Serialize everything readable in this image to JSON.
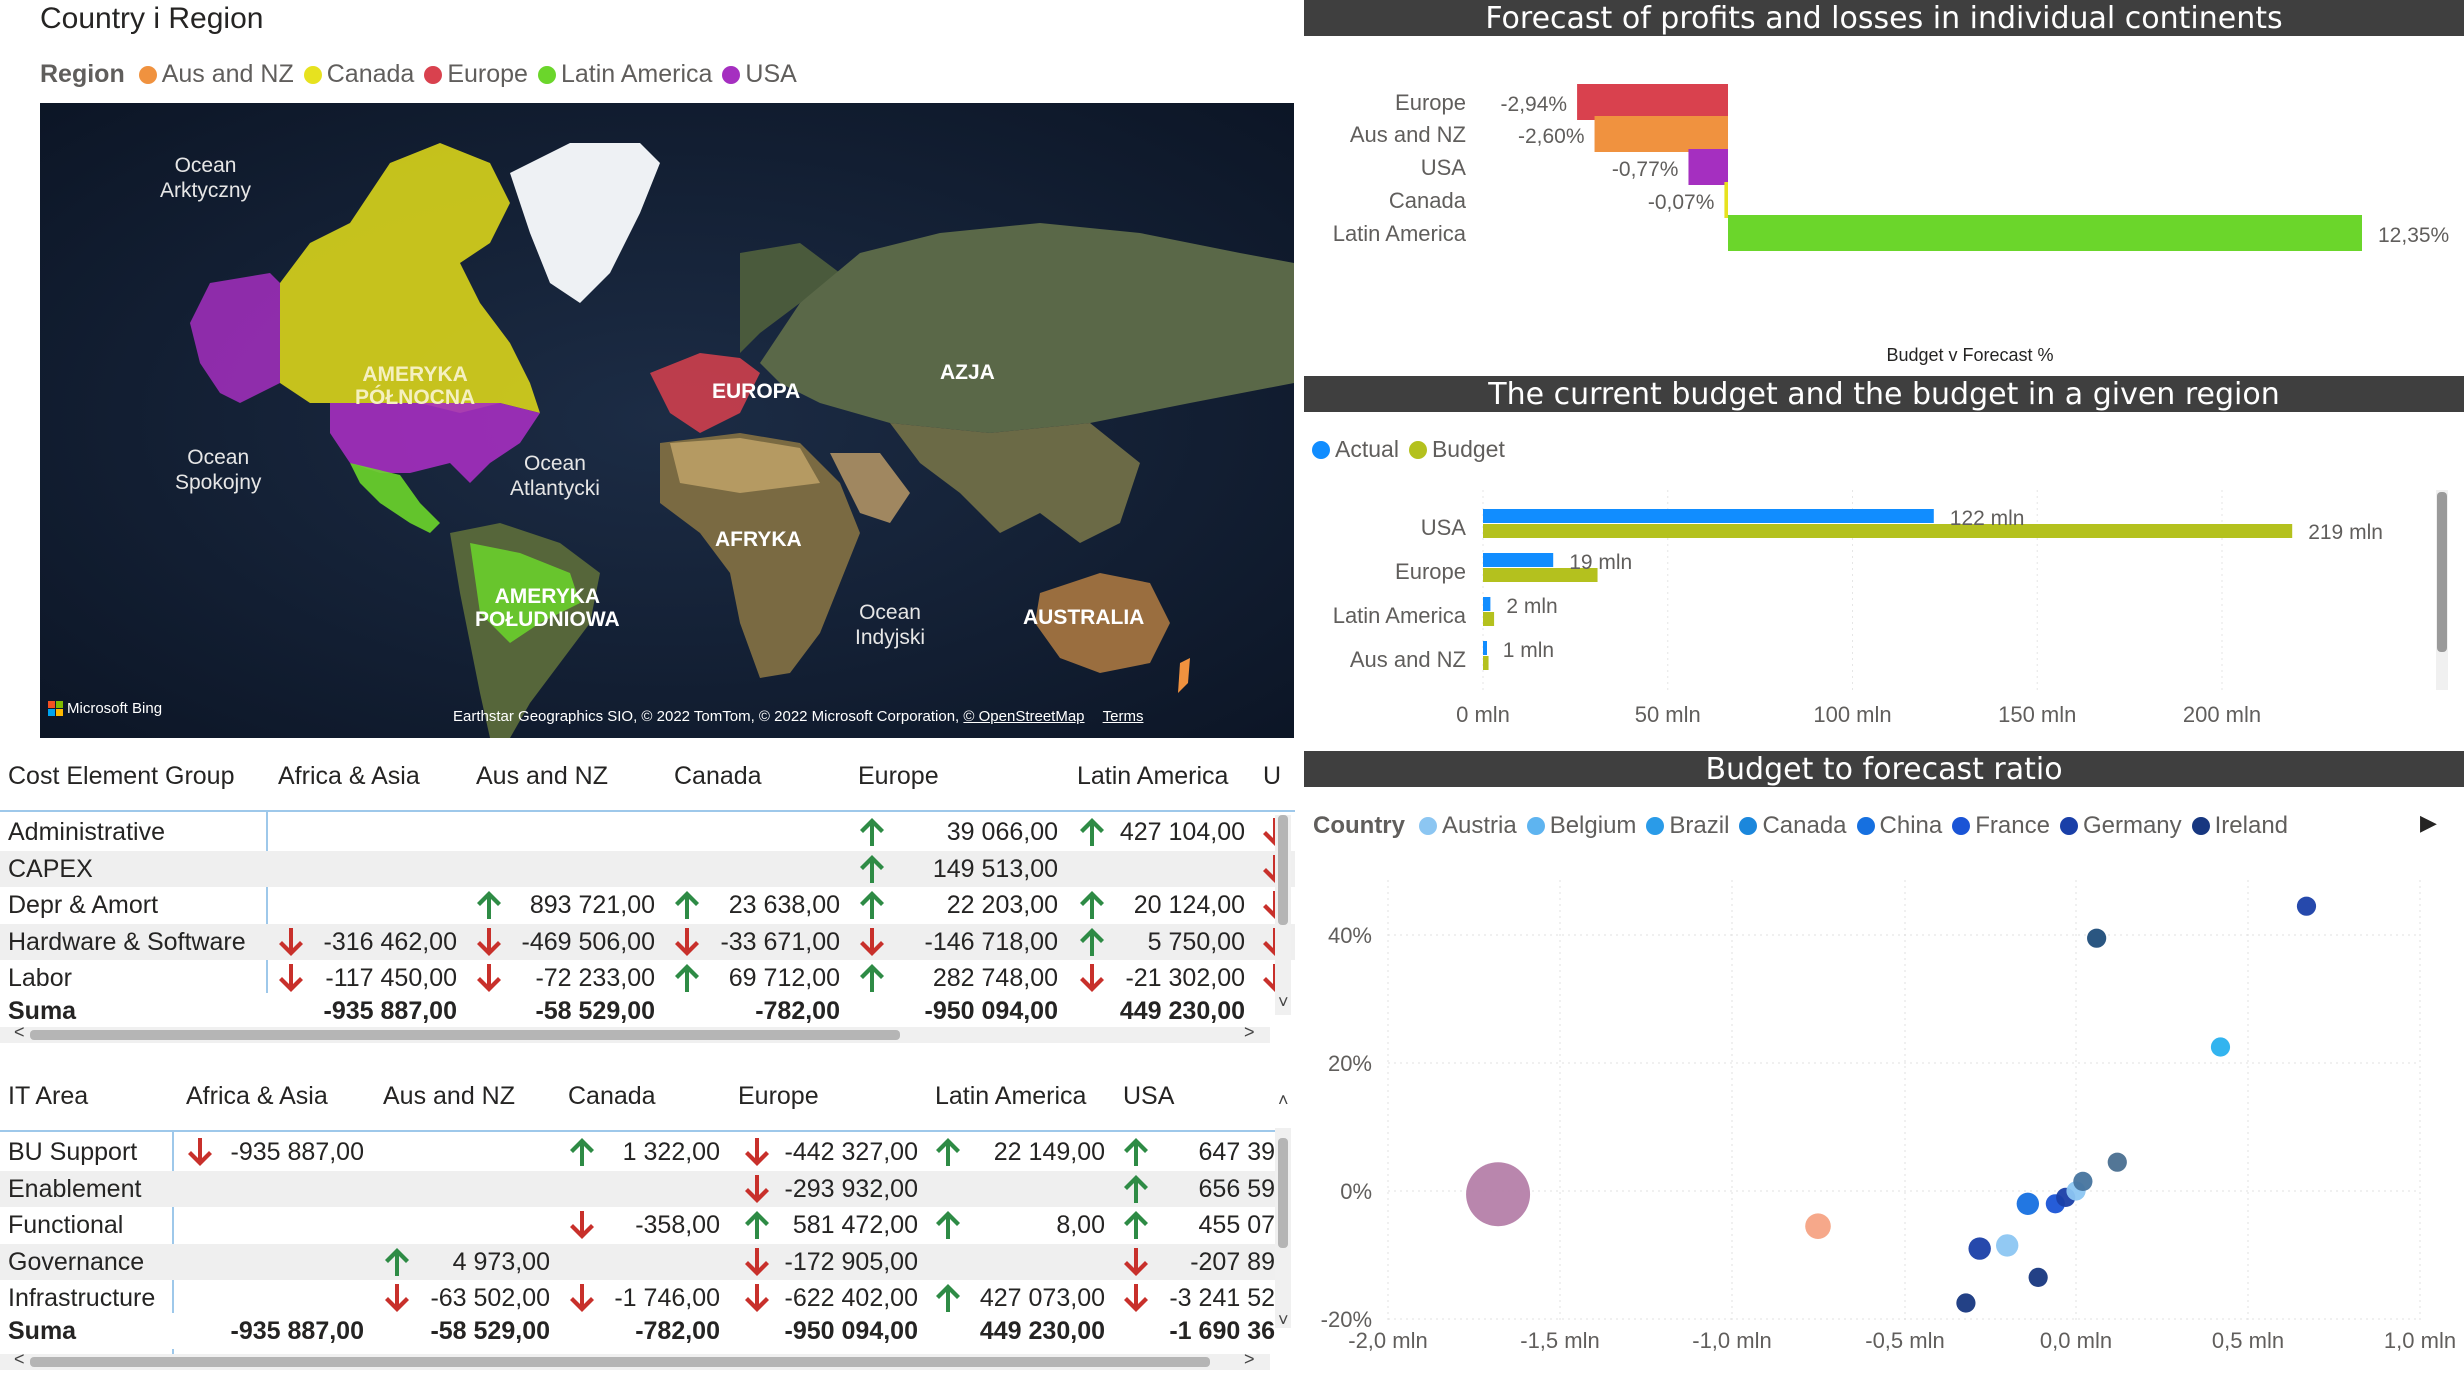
{
  "map_visual": {
    "title": "Country i Region",
    "legend_title": "Region",
    "legend": [
      {
        "label": "Aus and NZ",
        "color": "#f0923f"
      },
      {
        "label": "Canada",
        "color": "#e7e21f"
      },
      {
        "label": "Europe",
        "color": "#d9414e"
      },
      {
        "label": "Latin America",
        "color": "#6bd62b"
      },
      {
        "label": "USA",
        "color": "#a52fc0"
      }
    ],
    "labels": {
      "ocean_arctic": "Ocean\nArktyczny",
      "ocean_pacific": "Ocean\nSpokojny",
      "ocean_atlantic": "Ocean\nAtlantycki",
      "ocean_indian": "Ocean\nIndyjski",
      "north_america": "AMERYKA\nPÓŁNOCNA",
      "south_america": "AMERYKA\nPOŁUDNIOWA",
      "europe": "EUROPA",
      "asia": "AZJA",
      "africa": "AFRYKA",
      "australia": "AUSTRALIA"
    },
    "bing": "Microsoft Bing",
    "attribution": "Earthstar Geographics SIO, © 2022 TomTom, © 2022 Microsoft Corporation,",
    "osm_link": "© OpenStreetMap",
    "terms_link": "Terms"
  },
  "forecast_chart": {
    "header": "Forecast of profits and losses in individual continents",
    "chart_data": {
      "type": "bar",
      "categories": [
        "Europe",
        "Aus and NZ",
        "USA",
        "Canada",
        "Latin America"
      ],
      "values": [
        -2.94,
        -2.6,
        -0.77,
        -0.07,
        12.35
      ],
      "value_labels": [
        "-2,94%",
        "-2,60%",
        "-0,77%",
        "-0,07%",
        "12,35%"
      ],
      "colors": [
        "#d9414e",
        "#f0923f",
        "#a52fc0",
        "#e7e21f",
        "#6bd62b"
      ],
      "xlabel": "Budget v Forecast %",
      "ylabel": "",
      "xlim": [
        -3.0,
        12.35
      ]
    }
  },
  "budget_chart": {
    "header": "The current budget and the budget in a given region",
    "legend": [
      {
        "label": "Actual",
        "color": "#118dff"
      },
      {
        "label": "Budget",
        "color": "#b4c11e"
      }
    ],
    "chart_data": {
      "type": "bar",
      "categories": [
        "USA",
        "Europe",
        "Latin America",
        "Aus and NZ"
      ],
      "series": [
        {
          "name": "Actual",
          "values": [
            122,
            19,
            2,
            1
          ],
          "labels": [
            "122 mln",
            "19 mln",
            "2 mln",
            "1 mln"
          ]
        },
        {
          "name": "Budget",
          "values": [
            219,
            31,
            3,
            1.5
          ],
          "labels": [
            "219 mln",
            "",
            "",
            ""
          ]
        }
      ],
      "xticks": [
        "0 mln",
        "50 mln",
        "100 mln",
        "150 mln",
        "200 mln"
      ],
      "xlim": [
        0,
        240
      ]
    }
  },
  "scatter_chart": {
    "header": "Budget to forecast ratio",
    "legend_title": "Country",
    "legend": [
      {
        "label": "Austria",
        "color": "#8cc6f2"
      },
      {
        "label": "Belgium",
        "color": "#5eb4f0"
      },
      {
        "label": "Brazil",
        "color": "#2a9be8"
      },
      {
        "label": "Canada",
        "color": "#1b87dc"
      },
      {
        "label": "China",
        "color": "#1670e0"
      },
      {
        "label": "France",
        "color": "#1a54d6"
      },
      {
        "label": "Germany",
        "color": "#1a3fa8"
      },
      {
        "label": "Ireland",
        "color": "#173780"
      }
    ],
    "chart_data": {
      "type": "scatter",
      "xticks": [
        "-2,0 mln",
        "-1,5 mln",
        "-1,0 mln",
        "-0,5 mln",
        "0,0 mln",
        "0,5 mln",
        "1,0 mln"
      ],
      "yticks": [
        "40%",
        "20%",
        "0%",
        "-20%"
      ],
      "xlim": [
        -2.0,
        1.0
      ],
      "ylim": [
        -20,
        45
      ],
      "points": [
        {
          "x": -1.68,
          "y": -0.5,
          "r": 20,
          "color": "#b57fa9"
        },
        {
          "x": -0.75,
          "y": -5.5,
          "r": 8,
          "color": "#f6a384"
        },
        {
          "x": -0.32,
          "y": -17.5,
          "r": 6,
          "color": "#173780"
        },
        {
          "x": -0.28,
          "y": -9,
          "r": 7,
          "color": "#1a3fa8"
        },
        {
          "x": -0.2,
          "y": -8.5,
          "r": 7,
          "color": "#8cc6f2"
        },
        {
          "x": -0.14,
          "y": -2,
          "r": 7,
          "color": "#1670e0"
        },
        {
          "x": -0.11,
          "y": -13.5,
          "r": 6,
          "color": "#173780"
        },
        {
          "x": -0.06,
          "y": -2,
          "r": 6,
          "color": "#1a54d6"
        },
        {
          "x": -0.03,
          "y": -1,
          "r": 6,
          "color": "#1a3fa8"
        },
        {
          "x": 0.0,
          "y": 0,
          "r": 6,
          "color": "#8cc6f2"
        },
        {
          "x": 0.02,
          "y": 1.5,
          "r": 6,
          "color": "#46749e"
        },
        {
          "x": 0.06,
          "y": 39.5,
          "r": 6,
          "color": "#1f4d7a"
        },
        {
          "x": 0.12,
          "y": 4.5,
          "r": 6,
          "color": "#4a6f90"
        },
        {
          "x": 0.42,
          "y": 22.5,
          "r": 6,
          "color": "#28b0ee"
        },
        {
          "x": 0.67,
          "y": 44.5,
          "r": 6,
          "color": "#1a3fa8"
        }
      ]
    }
  },
  "table1": {
    "columns": [
      "Cost Element Group",
      "Africa & Asia",
      "Aus and NZ",
      "Canada",
      "Europe",
      "Latin America",
      "U"
    ],
    "rows": [
      {
        "label": "Administrative",
        "cells": [
          "",
          "",
          "",
          "39 066,00",
          "427 104,00"
        ],
        "arrows": [
          "",
          "",
          "",
          "up",
          "up",
          "down"
        ]
      },
      {
        "label": "CAPEX",
        "cells": [
          "",
          "",
          "",
          "149 513,00",
          ""
        ],
        "arrows": [
          "",
          "",
          "",
          "up",
          "",
          "down"
        ]
      },
      {
        "label": "Depr & Amort",
        "cells": [
          "",
          "893 721,00",
          "23 638,00",
          "22 203,00",
          "20 124,00"
        ],
        "arrows": [
          "",
          "up",
          "up",
          "up",
          "up",
          "down"
        ]
      },
      {
        "label": "Hardware & Software",
        "cells": [
          "-316 462,00",
          "-469 506,00",
          "-33 671,00",
          "-146 718,00",
          "5 750,00"
        ],
        "arrows": [
          "down",
          "down",
          "down",
          "down",
          "up",
          "down"
        ]
      },
      {
        "label": "Labor",
        "cells": [
          "-117 450,00",
          "-72 233,00",
          "69 712,00",
          "282 748,00",
          "-21 302,00"
        ],
        "arrows": [
          "down",
          "down",
          "up",
          "up",
          "down",
          "down"
        ]
      }
    ],
    "total": {
      "label": "Suma",
      "cells": [
        "-935 887,00",
        "-58 529,00",
        "-782,00",
        "-950 094,00",
        "449 230,00"
      ]
    }
  },
  "table2": {
    "columns": [
      "IT Area",
      "Africa & Asia",
      "Aus and NZ",
      "Canada",
      "Europe",
      "Latin America",
      "USA"
    ],
    "rows": [
      {
        "label": "BU Support",
        "cells": [
          "-935 887,00",
          "",
          "1 322,00",
          "-442 327,00",
          "22 149,00",
          "647 39"
        ],
        "arrows": [
          "down",
          "",
          "up",
          "down",
          "up",
          "up"
        ]
      },
      {
        "label": "Enablement",
        "cells": [
          "",
          "",
          "",
          "-293 932,00",
          "",
          "656 59"
        ],
        "arrows": [
          "",
          "",
          "",
          "down",
          "",
          "up"
        ]
      },
      {
        "label": "Functional",
        "cells": [
          "",
          "",
          "-358,00",
          "581 472,00",
          "8,00",
          "455 07"
        ],
        "arrows": [
          "",
          "",
          "down",
          "up",
          "up",
          "up"
        ]
      },
      {
        "label": "Governance",
        "cells": [
          "",
          "4 973,00",
          "",
          "-172 905,00",
          "",
          "-207 89"
        ],
        "arrows": [
          "",
          "up",
          "",
          "down",
          "",
          "down"
        ]
      },
      {
        "label": "Infrastructure",
        "cells": [
          "",
          "-63 502,00",
          "-1 746,00",
          "-622 402,00",
          "427 073,00",
          "-3 241 52"
        ],
        "arrows": [
          "",
          "down",
          "down",
          "down",
          "up",
          "down"
        ]
      }
    ],
    "total": {
      "label": "Suma",
      "cells": [
        "-935 887,00",
        "-58 529,00",
        "-782,00",
        "-950 094,00",
        "449 230,00",
        "-1 690 36"
      ]
    }
  }
}
